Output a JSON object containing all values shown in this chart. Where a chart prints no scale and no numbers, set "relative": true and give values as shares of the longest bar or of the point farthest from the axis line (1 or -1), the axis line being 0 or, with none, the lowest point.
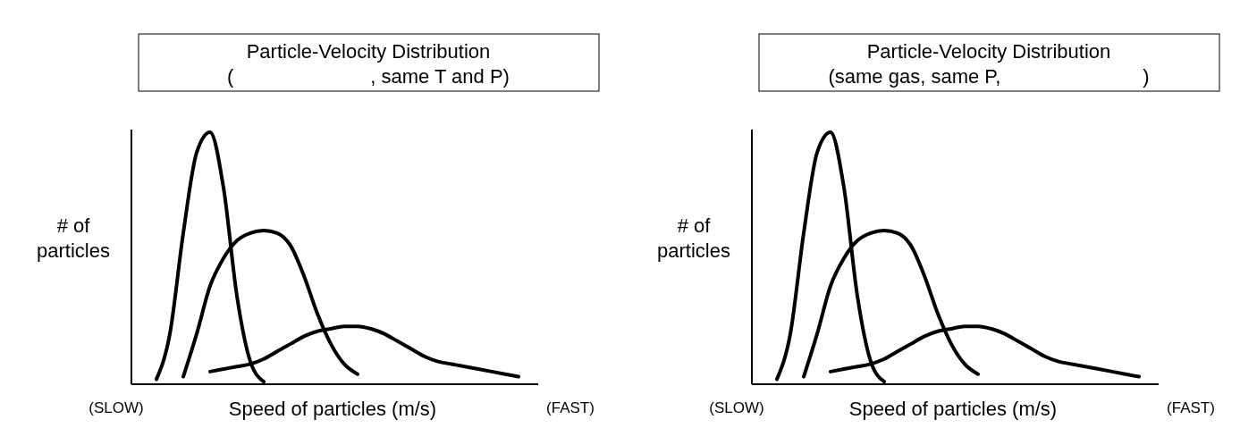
{
  "chart_data": [
    {
      "type": "line",
      "title": "Particle-Velocity Distribution",
      "subtitle": "(                         , same T and P)",
      "xlabel": "Speed of particles (m/s)",
      "ylabel": "# of particles",
      "annotations": [
        "(SLOW)",
        "(FAST)"
      ],
      "relative": true,
      "categories": [
        null,
        null,
        null,
        null,
        null,
        null,
        null,
        null,
        null,
        null,
        null,
        null,
        null,
        null,
        null,
        null,
        null,
        null,
        null,
        null,
        null,
        null,
        null,
        null,
        null,
        null,
        null,
        null
      ],
      "series": [
        {
          "color": "#000000",
          "values": [
            0.02,
            0.2,
            0.6,
            0.92,
            1,
            0.78,
            0.35,
            0.09,
            0.01,
            null,
            null,
            null,
            null,
            null,
            null,
            null,
            null,
            null,
            null,
            null,
            null,
            null,
            null,
            null,
            null,
            null,
            null,
            null
          ]
        },
        {
          "color": "#000000",
          "values": [
            null,
            null,
            0.03,
            0.2,
            0.39,
            0.5,
            0.57,
            0.6,
            0.61,
            0.6,
            0.55,
            0.43,
            0.28,
            0.16,
            0.08,
            0.04,
            null,
            null,
            null,
            null,
            null,
            null,
            null,
            null,
            null,
            null,
            null,
            null
          ]
        },
        {
          "color": "#000000",
          "values": [
            null,
            null,
            null,
            null,
            0.05,
            0.06,
            0.07,
            0.08,
            0.1,
            0.13,
            0.16,
            0.19,
            0.21,
            0.22,
            0.23,
            0.23,
            0.22,
            0.2,
            0.17,
            0.14,
            0.11,
            0.09,
            0.08,
            0.07,
            0.06,
            0.05,
            0.04,
            0.03
          ]
        }
      ]
    },
    {
      "type": "line",
      "title": "Particle-Velocity Distribution",
      "subtitle": "(same gas, same P,                          )",
      "xlabel": "Speed of particles (m/s)",
      "ylabel": "# of particles",
      "annotations": [
        "(SLOW)",
        "(FAST)"
      ],
      "relative": true,
      "categories": [
        null,
        null,
        null,
        null,
        null,
        null,
        null,
        null,
        null,
        null,
        null,
        null,
        null,
        null,
        null,
        null,
        null,
        null,
        null,
        null,
        null,
        null,
        null,
        null,
        null,
        null,
        null,
        null
      ],
      "series": [
        {
          "color": "#000000",
          "values": [
            0.02,
            0.2,
            0.6,
            0.92,
            1,
            0.78,
            0.35,
            0.09,
            0.01,
            null,
            null,
            null,
            null,
            null,
            null,
            null,
            null,
            null,
            null,
            null,
            null,
            null,
            null,
            null,
            null,
            null,
            null,
            null
          ]
        },
        {
          "color": "#000000",
          "values": [
            null,
            null,
            0.03,
            0.2,
            0.39,
            0.5,
            0.57,
            0.6,
            0.61,
            0.6,
            0.55,
            0.43,
            0.28,
            0.16,
            0.08,
            0.04,
            null,
            null,
            null,
            null,
            null,
            null,
            null,
            null,
            null,
            null,
            null,
            null
          ]
        },
        {
          "color": "#000000",
          "values": [
            null,
            null,
            null,
            null,
            0.05,
            0.06,
            0.07,
            0.08,
            0.1,
            0.13,
            0.16,
            0.19,
            0.21,
            0.22,
            0.23,
            0.23,
            0.22,
            0.2,
            0.17,
            0.14,
            0.11,
            0.09,
            0.08,
            0.07,
            0.06,
            0.05,
            0.04,
            0.03
          ]
        }
      ]
    }
  ]
}
